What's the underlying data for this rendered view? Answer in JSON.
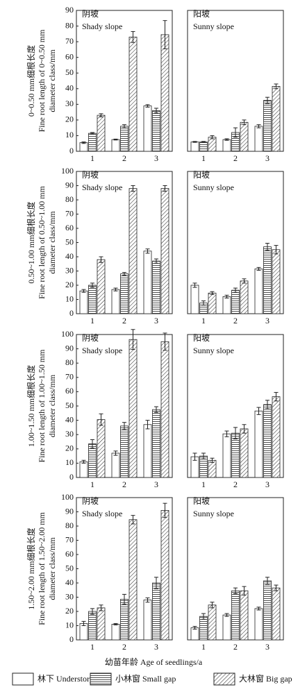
{
  "x_label": "幼苗年龄 Age of seedlings/a",
  "chart_data": [
    {
      "type": "bar",
      "annotation": [
        "阴坡",
        "Shady slope"
      ],
      "y_label": [
        "0~0.50 mm细根长度",
        "Fine root length of 0~0.50 mm",
        "diameter class/mm"
      ],
      "categories": [
        "1",
        "2",
        "3"
      ],
      "ylim": [
        0,
        90
      ],
      "yticks": [
        0,
        10,
        20,
        30,
        40,
        50,
        60,
        70,
        80,
        90
      ],
      "series": [
        {
          "name": "林下 Understory",
          "color": "#ffffff",
          "hatch": "none",
          "values": [
            5.5,
            7.5,
            29
          ],
          "errors": [
            0.5,
            0.3,
            0.8
          ]
        },
        {
          "name": "小林窗 Small gap",
          "color": "#ffffff",
          "hatch": "horizontal",
          "values": [
            11.5,
            16,
            26
          ],
          "errors": [
            0.5,
            1,
            1.5
          ]
        },
        {
          "name": "大林窗 Big gap",
          "color": "#ffffff",
          "hatch": "diagonal",
          "values": [
            23,
            73,
            74.5
          ],
          "errors": [
            1,
            3.5,
            9
          ]
        }
      ]
    },
    {
      "type": "bar",
      "annotation": [
        "阳坡",
        "Sunny slope"
      ],
      "categories": [
        "1",
        "2",
        "3"
      ],
      "ylim": [
        0,
        90
      ],
      "series": [
        {
          "color": "#ffffff",
          "hatch": "none",
          "values": [
            6,
            7.5,
            16
          ],
          "errors": [
            0.3,
            0.5,
            1
          ]
        },
        {
          "color": "#ffffff",
          "hatch": "horizontal",
          "values": [
            6,
            12,
            32.5
          ],
          "errors": [
            0.3,
            3,
            2
          ]
        },
        {
          "color": "#ffffff",
          "hatch": "diagonal",
          "values": [
            9,
            18.5,
            41.5
          ],
          "errors": [
            1,
            1.5,
            1.5
          ]
        }
      ]
    },
    {
      "type": "bar",
      "annotation": [
        "阴坡",
        "Shady slope"
      ],
      "y_label": [
        "0.50~1.00 mm细根长度",
        "Fine root length of 0.50~1.00 mm",
        "diameter class/mm"
      ],
      "categories": [
        "1",
        "2",
        "3"
      ],
      "ylim": [
        0,
        100
      ],
      "yticks": [
        0,
        10,
        20,
        30,
        40,
        50,
        60,
        70,
        80,
        90,
        100
      ],
      "series": [
        {
          "color": "#ffffff",
          "hatch": "none",
          "values": [
            16,
            17,
            44
          ],
          "errors": [
            1,
            1,
            1.5
          ]
        },
        {
          "color": "#ffffff",
          "hatch": "horizontal",
          "values": [
            20,
            28,
            37
          ],
          "errors": [
            1.5,
            1,
            1.5
          ]
        },
        {
          "color": "#ffffff",
          "hatch": "diagonal",
          "values": [
            38,
            88,
            88
          ],
          "errors": [
            2,
            2,
            2
          ]
        }
      ]
    },
    {
      "type": "bar",
      "annotation": [
        "阳坡",
        "Sunny slope"
      ],
      "categories": [
        "1",
        "2",
        "3"
      ],
      "ylim": [
        0,
        100
      ],
      "series": [
        {
          "color": "#ffffff",
          "hatch": "none",
          "values": [
            20,
            12,
            31.5
          ],
          "errors": [
            1.5,
            1,
            1
          ]
        },
        {
          "color": "#ffffff",
          "hatch": "horizontal",
          "values": [
            7.5,
            16.5,
            47
          ],
          "errors": [
            1.5,
            1.5,
            2.5
          ]
        },
        {
          "color": "#ffffff",
          "hatch": "diagonal",
          "values": [
            14.5,
            23,
            45
          ],
          "errors": [
            1,
            1.5,
            3
          ]
        }
      ]
    },
    {
      "type": "bar",
      "annotation": [
        "阴坡",
        "Shady slope"
      ],
      "y_label": [
        "1.00~1.50 mm细根长度",
        "Fine root length of 1.00~1.50 mm",
        "diameter class/mm"
      ],
      "categories": [
        "1",
        "2",
        "3"
      ],
      "ylim": [
        0,
        100
      ],
      "yticks": [
        0,
        10,
        20,
        30,
        40,
        50,
        60,
        70,
        80,
        90,
        100
      ],
      "series": [
        {
          "color": "#ffffff",
          "hatch": "none",
          "values": [
            11,
            17,
            37
          ],
          "errors": [
            1,
            1.5,
            3
          ]
        },
        {
          "color": "#ffffff",
          "hatch": "horizontal",
          "values": [
            23.5,
            36,
            47.5
          ],
          "errors": [
            3,
            2.5,
            2
          ]
        },
        {
          "color": "#ffffff",
          "hatch": "diagonal",
          "values": [
            40.5,
            96.5,
            95
          ],
          "errors": [
            4,
            7,
            6
          ]
        }
      ]
    },
    {
      "type": "bar",
      "annotation": [
        "阳坡",
        "Sunny slope"
      ],
      "categories": [
        "1",
        "2",
        "3"
      ],
      "ylim": [
        0,
        100
      ],
      "series": [
        {
          "color": "#ffffff",
          "hatch": "none",
          "values": [
            14.5,
            30.5,
            46.5
          ],
          "errors": [
            2.5,
            2,
            2.5
          ]
        },
        {
          "color": "#ffffff",
          "hatch": "horizontal",
          "values": [
            15,
            31,
            51
          ],
          "errors": [
            2,
            4,
            3
          ]
        },
        {
          "color": "#ffffff",
          "hatch": "diagonal",
          "values": [
            12,
            34,
            56.5
          ],
          "errors": [
            1.5,
            3,
            3
          ]
        }
      ]
    },
    {
      "type": "bar",
      "annotation": [
        "阴坡",
        "Shady slope"
      ],
      "y_label": [
        "1.50~2.00 mm细根长度",
        "Fine root length of 1.50~2.00 mm",
        "diameter class/mm"
      ],
      "categories": [
        "1",
        "2",
        "3"
      ],
      "ylim": [
        0,
        100
      ],
      "yticks": [
        0,
        10,
        20,
        30,
        40,
        50,
        60,
        70,
        80,
        90,
        100
      ],
      "series": [
        {
          "color": "#ffffff",
          "hatch": "none",
          "values": [
            11.5,
            11,
            28
          ],
          "errors": [
            1.5,
            0.5,
            1.5
          ]
        },
        {
          "color": "#ffffff",
          "hatch": "horizontal",
          "values": [
            20,
            28.5,
            40
          ],
          "errors": [
            2,
            3.5,
            4
          ]
        },
        {
          "color": "#ffffff",
          "hatch": "diagonal",
          "values": [
            22.5,
            84.5,
            91
          ],
          "errors": [
            2,
            3,
            5
          ]
        }
      ]
    },
    {
      "type": "bar",
      "annotation": [
        "阳坡",
        "Sunny slope"
      ],
      "categories": [
        "1",
        "2",
        "3"
      ],
      "ylim": [
        0,
        100
      ],
      "series": [
        {
          "color": "#ffffff",
          "hatch": "none",
          "values": [
            8.5,
            17.5,
            22
          ],
          "errors": [
            1,
            1,
            1
          ]
        },
        {
          "color": "#ffffff",
          "hatch": "horizontal",
          "values": [
            16.5,
            34.5,
            41.5
          ],
          "errors": [
            2,
            2,
            2.5
          ]
        },
        {
          "color": "#ffffff",
          "hatch": "diagonal",
          "values": [
            24.5,
            34.5,
            36.5
          ],
          "errors": [
            2,
            3,
            2
          ]
        }
      ]
    }
  ]
}
